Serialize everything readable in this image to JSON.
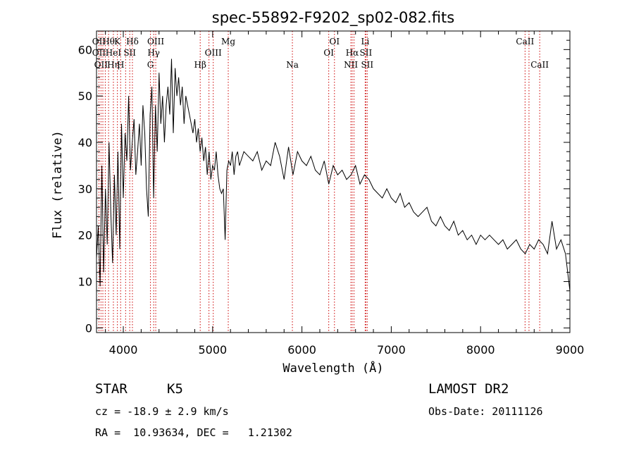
{
  "chart_data": {
    "type": "line",
    "title": "spec-55892-F9202_sp02-082.fits",
    "xlabel": "Wavelength (Å)",
    "ylabel": "Flux (relative)",
    "xlim": [
      3700,
      9000
    ],
    "ylim": [
      -1,
      64
    ],
    "xticks": [
      4000,
      5000,
      6000,
      7000,
      8000,
      9000
    ],
    "yticks": [
      0,
      10,
      20,
      30,
      40,
      50,
      60
    ],
    "grid": false,
    "series": [
      {
        "x": [
          3700,
          3720,
          3740,
          3760,
          3780,
          3800,
          3820,
          3840,
          3860,
          3880,
          3900,
          3920,
          3940,
          3960,
          3980,
          4000,
          4020,
          4040,
          4060,
          4080,
          4100,
          4120,
          4140,
          4160,
          4180,
          4200,
          4220,
          4240,
          4260,
          4280,
          4300,
          4320,
          4340,
          4360,
          4380,
          4400,
          4420,
          4440,
          4460,
          4480,
          4500,
          4520,
          4540,
          4560,
          4580,
          4600,
          4620,
          4640,
          4660,
          4680,
          4700,
          4720,
          4740,
          4760,
          4780,
          4800,
          4820,
          4840,
          4860,
          4880,
          4900,
          4920,
          4940,
          4960,
          4980,
          5000,
          5020,
          5040,
          5060,
          5080,
          5100,
          5120,
          5140,
          5160,
          5180,
          5200,
          5220,
          5240,
          5260,
          5280,
          5300,
          5350,
          5400,
          5450,
          5500,
          5550,
          5600,
          5650,
          5700,
          5750,
          5800,
          5850,
          5900,
          5950,
          6000,
          6050,
          6100,
          6150,
          6200,
          6250,
          6300,
          6350,
          6400,
          6450,
          6500,
          6550,
          6600,
          6650,
          6700,
          6750,
          6800,
          6850,
          6900,
          6950,
          7000,
          7050,
          7100,
          7150,
          7200,
          7250,
          7300,
          7350,
          7400,
          7450,
          7500,
          7550,
          7600,
          7650,
          7700,
          7750,
          7800,
          7850,
          7900,
          7950,
          8000,
          8050,
          8100,
          8150,
          8200,
          8250,
          8300,
          8350,
          8400,
          8450,
          8500,
          8550,
          8600,
          8650,
          8700,
          8750,
          8800,
          8850,
          8900,
          8950,
          9000
        ],
        "y": [
          15,
          22,
          9,
          35,
          12,
          30,
          18,
          40,
          25,
          14,
          33,
          20,
          38,
          17,
          44,
          28,
          42,
          36,
          50,
          34,
          40,
          45,
          33,
          38,
          44,
          35,
          48,
          42,
          30,
          24,
          46,
          52,
          28,
          48,
          38,
          55,
          44,
          50,
          40,
          48,
          52,
          46,
          58,
          42,
          56,
          50,
          54,
          48,
          52,
          44,
          50,
          48,
          46,
          44,
          42,
          45,
          40,
          43,
          38,
          41,
          36,
          39,
          33,
          38,
          32,
          35,
          34,
          38,
          33,
          30,
          29,
          30,
          19,
          34,
          36,
          35,
          38,
          33,
          37,
          38,
          35,
          38,
          37,
          36,
          38,
          34,
          36,
          35,
          40,
          37,
          32,
          39,
          33,
          38,
          36,
          35,
          37,
          34,
          33,
          36,
          31,
          35,
          33,
          34,
          32,
          33,
          35,
          31,
          33,
          32,
          30,
          29,
          28,
          30,
          28,
          27,
          29,
          26,
          27,
          25,
          24,
          25,
          26,
          23,
          22,
          24,
          22,
          21,
          23,
          20,
          21,
          19,
          20,
          18,
          20,
          19,
          20,
          19,
          18,
          19,
          17,
          18,
          19,
          17,
          16,
          18,
          17,
          19,
          18,
          16,
          23,
          17,
          19,
          16,
          8
        ],
        "style": "solid black"
      }
    ],
    "spectral_lines": [
      {
        "wl": 3727,
        "top": "OII",
        "mid": "OII",
        "low": ""
      },
      {
        "wl": 3750,
        "top": "",
        "mid": "",
        "low": "OII"
      },
      {
        "wl": 3771,
        "top": "",
        "mid": "",
        "low": ""
      },
      {
        "wl": 3798,
        "top": "",
        "mid": "",
        "low": ""
      },
      {
        "wl": 3835,
        "top": "Hθ",
        "mid": "",
        "low": ""
      },
      {
        "wl": 3889,
        "top": "",
        "mid": "HeI",
        "low": "Hη"
      },
      {
        "wl": 3934,
        "top": "K",
        "mid": "",
        "low": ""
      },
      {
        "wl": 3970,
        "top": "",
        "mid": "",
        "low": "H"
      },
      {
        "wl": 4026,
        "top": "",
        "mid": "",
        "low": ""
      },
      {
        "wl": 4072,
        "top": "",
        "mid": "SII",
        "low": ""
      },
      {
        "wl": 4102,
        "top": "Hδ",
        "mid": "",
        "low": ""
      },
      {
        "wl": 4304,
        "top": "",
        "mid": "",
        "low": "G"
      },
      {
        "wl": 4340,
        "top": "",
        "mid": "Hγ",
        "low": ""
      },
      {
        "wl": 4363,
        "top": "OIII",
        "mid": "",
        "low": ""
      },
      {
        "wl": 4861,
        "top": "",
        "mid": "",
        "low": "Hβ"
      },
      {
        "wl": 4959,
        "top": "",
        "mid": "",
        "low": ""
      },
      {
        "wl": 5007,
        "top": "",
        "mid": "OIII",
        "low": ""
      },
      {
        "wl": 5175,
        "top": "Mg",
        "mid": "",
        "low": ""
      },
      {
        "wl": 5893,
        "top": "",
        "mid": "",
        "low": "Na"
      },
      {
        "wl": 6300,
        "top": "",
        "mid": "OI",
        "low": ""
      },
      {
        "wl": 6364,
        "top": "OI",
        "mid": "",
        "low": ""
      },
      {
        "wl": 6548,
        "top": "",
        "mid": "",
        "low": "NII"
      },
      {
        "wl": 6563,
        "top": "",
        "mid": "Hα",
        "low": ""
      },
      {
        "wl": 6583,
        "top": "",
        "mid": "",
        "low": ""
      },
      {
        "wl": 6708,
        "top": "Li",
        "mid": "",
        "low": ""
      },
      {
        "wl": 6716,
        "top": "",
        "mid": "SII",
        "low": ""
      },
      {
        "wl": 6731,
        "top": "",
        "mid": "",
        "low": "SII"
      },
      {
        "wl": 8498,
        "top": "CaII",
        "mid": "",
        "low": ""
      },
      {
        "wl": 8542,
        "top": "",
        "mid": "",
        "low": ""
      },
      {
        "wl": 8662,
        "top": "",
        "mid": "",
        "low": "CaII"
      }
    ],
    "line_marker_color": "#cc0000"
  },
  "info": {
    "object_class": "STAR",
    "subclass": "K5",
    "survey": "LAMOST DR2",
    "redshift": "cz = -18.9 ± 2.9 km/s",
    "obs_date": "Obs-Date: 20111126",
    "coords": "RA =  10.93634, DEC =   1.21302"
  }
}
